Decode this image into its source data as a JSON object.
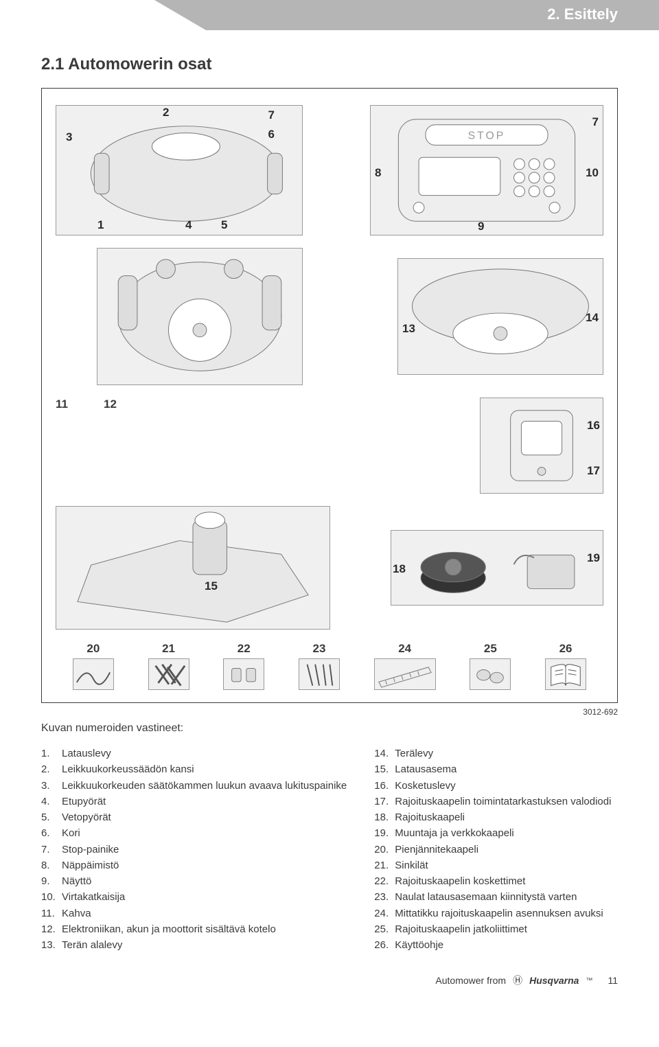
{
  "header": {
    "title": "2. Esittely"
  },
  "section": {
    "heading": "2.1 Automowerin osat"
  },
  "figure": {
    "code": "3012-692",
    "callouts_top": [
      "1",
      "2",
      "3",
      "4",
      "5",
      "6",
      "7",
      "7",
      "8",
      "9",
      "10"
    ],
    "callouts_mid": [
      "11",
      "12",
      "13",
      "14",
      "15",
      "16",
      "17",
      "18",
      "19"
    ],
    "bottom_row": [
      "20",
      "21",
      "22",
      "23",
      "24",
      "25",
      "26"
    ]
  },
  "caption": "Kuvan numeroiden vastineet:",
  "list_left": [
    {
      "n": "1.",
      "t": "Latauslevy"
    },
    {
      "n": "2.",
      "t": "Leikkuukorkeussäädön kansi"
    },
    {
      "n": "3.",
      "t": "Leikkuukorkeuden säätökammen luukun avaava lukituspainike"
    },
    {
      "n": "4.",
      "t": "Etupyörät"
    },
    {
      "n": "5.",
      "t": "Vetopyörät"
    },
    {
      "n": "6.",
      "t": "Kori"
    },
    {
      "n": "7.",
      "t": "Stop-painike"
    },
    {
      "n": "8.",
      "t": "Näppäimistö"
    },
    {
      "n": "9.",
      "t": "Näyttö"
    },
    {
      "n": "10.",
      "t": "Virtakatkaisija"
    },
    {
      "n": "11.",
      "t": "Kahva"
    },
    {
      "n": "12.",
      "t": "Elektroniikan, akun ja moottorit sisältävä kotelo"
    },
    {
      "n": "13.",
      "t": "Terän alalevy"
    }
  ],
  "list_right": [
    {
      "n": "14.",
      "t": "Terälevy"
    },
    {
      "n": "15.",
      "t": "Latausasema"
    },
    {
      "n": "16.",
      "t": "Kosketuslevy"
    },
    {
      "n": "17.",
      "t": "Rajoituskaapelin toimintatarkastuksen valodiodi"
    },
    {
      "n": "18.",
      "t": "Rajoituskaapeli"
    },
    {
      "n": "19.",
      "t": "Muuntaja ja verkkokaapeli"
    },
    {
      "n": "20.",
      "t": "Pienjännitekaapeli"
    },
    {
      "n": "21.",
      "t": "Sinkilät"
    },
    {
      "n": "22.",
      "t": "Rajoituskaapelin koskettimet"
    },
    {
      "n": "23.",
      "t": "Naulat latausasemaan kiinnitystä varten"
    },
    {
      "n": "24.",
      "t": "Mittatikku rajoituskaapelin asennuksen avuksi"
    },
    {
      "n": "25.",
      "t": "Rajoituskaapelin jatkoliittimet"
    },
    {
      "n": "26.",
      "t": "Käyttöohje"
    }
  ],
  "footer": {
    "prefix": "Automower from",
    "brand_glyph": "Ⓗ",
    "brand": "Husqvarna",
    "tm": "™",
    "page": "11"
  },
  "colors": {
    "header_bg": "#b5b5b5",
    "text": "#3a3a3a",
    "figure_fill": "#f0f0f0",
    "border": "#9a9a9a"
  }
}
